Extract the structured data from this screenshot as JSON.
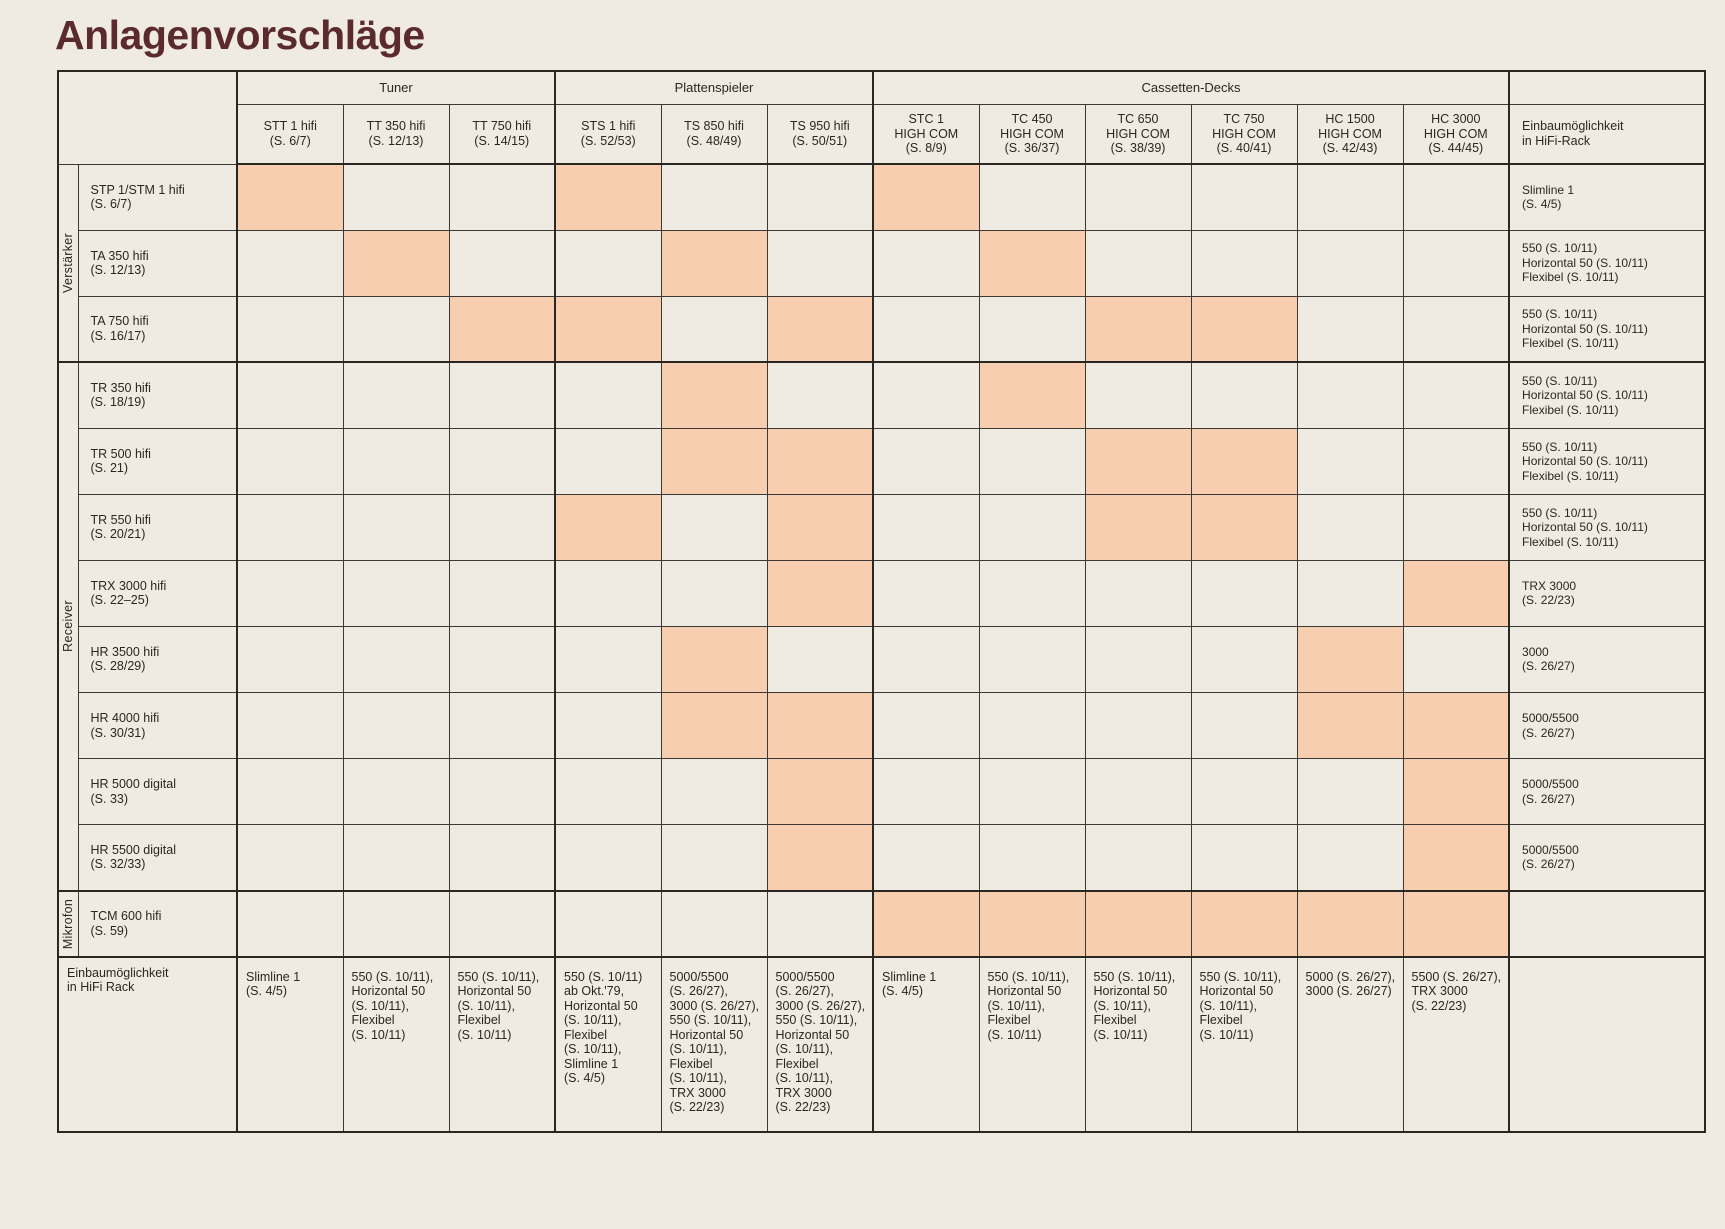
{
  "title": "Anlagenvorschläge",
  "accent_color": "#f7cfb0",
  "title_color": "#5a2a2c",
  "groups": [
    {
      "label": "Tuner",
      "span": 3
    },
    {
      "label": "Plattenspieler",
      "span": 3
    },
    {
      "label": "Cassetten-Decks",
      "span": 6
    }
  ],
  "columns": [
    {
      "lines": [
        "STT 1 hifi",
        "(S. 6/7)"
      ]
    },
    {
      "lines": [
        "TT 350 hifi",
        "(S. 12/13)"
      ]
    },
    {
      "lines": [
        "TT 750 hifi",
        "(S. 14/15)"
      ]
    },
    {
      "lines": [
        "STS 1 hifi",
        "(S. 52/53)"
      ]
    },
    {
      "lines": [
        "TS 850 hifi",
        "(S. 48/49)"
      ]
    },
    {
      "lines": [
        "TS 950 hifi",
        "(S. 50/51)"
      ]
    },
    {
      "lines": [
        "STC 1",
        "HIGH COM",
        "(S. 8/9)"
      ]
    },
    {
      "lines": [
        "TC 450",
        "HIGH COM",
        "(S. 36/37)"
      ]
    },
    {
      "lines": [
        "TC 650",
        "HIGH COM",
        "(S. 38/39)"
      ]
    },
    {
      "lines": [
        "TC 750",
        "HIGH COM",
        "(S. 40/41)"
      ]
    },
    {
      "lines": [
        "HC 1500",
        "HIGH COM",
        "(S. 42/43)"
      ]
    },
    {
      "lines": [
        "HC 3000",
        "HIGH COM",
        "(S. 44/45)"
      ]
    }
  ],
  "rack_header": [
    "Einbaumöglichkeit",
    "in HiFi-Rack"
  ],
  "sections": [
    {
      "label": "Verstärker",
      "rows": [
        {
          "lines": [
            "STP 1/STM 1 hifi",
            "(S. 6/7)"
          ],
          "marks": [
            1,
            0,
            0,
            1,
            0,
            0,
            1,
            0,
            0,
            0,
            0,
            0
          ],
          "rack": [
            "Slimline 1",
            "(S. 4/5)"
          ]
        },
        {
          "lines": [
            "TA 350 hifi",
            "(S. 12/13)"
          ],
          "marks": [
            0,
            1,
            0,
            0,
            1,
            0,
            0,
            1,
            0,
            0,
            0,
            0
          ],
          "rack": [
            "550 (S. 10/11)",
            "Horizontal 50 (S. 10/11)",
            "Flexibel (S. 10/11)"
          ]
        },
        {
          "lines": [
            "TA 750 hifi",
            "(S. 16/17)"
          ],
          "marks": [
            0,
            0,
            1,
            1,
            0,
            1,
            0,
            0,
            1,
            1,
            0,
            0
          ],
          "rack": [
            "550 (S. 10/11)",
            "Horizontal 50 (S. 10/11)",
            "Flexibel (S. 10/11)"
          ]
        }
      ]
    },
    {
      "label": "Receiver",
      "rows": [
        {
          "lines": [
            "TR 350 hifi",
            "(S. 18/19)"
          ],
          "marks": [
            0,
            0,
            0,
            0,
            1,
            0,
            0,
            1,
            0,
            0,
            0,
            0
          ],
          "rack": [
            "550 (S. 10/11)",
            "Horizontal 50 (S. 10/11)",
            "Flexibel (S. 10/11)"
          ]
        },
        {
          "lines": [
            "TR 500 hifi",
            "(S. 21)"
          ],
          "marks": [
            0,
            0,
            0,
            0,
            1,
            1,
            0,
            0,
            1,
            1,
            0,
            0
          ],
          "rack": [
            "550 (S. 10/11)",
            "Horizontal 50 (S. 10/11)",
            "Flexibel (S. 10/11)"
          ]
        },
        {
          "lines": [
            "TR 550 hifi",
            "(S. 20/21)"
          ],
          "marks": [
            0,
            0,
            0,
            1,
            0,
            1,
            0,
            0,
            1,
            1,
            0,
            0
          ],
          "rack": [
            "550 (S. 10/11)",
            "Horizontal 50 (S. 10/11)",
            "Flexibel (S. 10/11)"
          ]
        },
        {
          "lines": [
            "TRX 3000 hifi",
            "(S. 22–25)"
          ],
          "marks": [
            0,
            0,
            0,
            0,
            0,
            1,
            0,
            0,
            0,
            0,
            0,
            1
          ],
          "rack": [
            "TRX 3000",
            "(S. 22/23)"
          ]
        },
        {
          "lines": [
            "HR 3500 hifi",
            "(S. 28/29)"
          ],
          "marks": [
            0,
            0,
            0,
            0,
            1,
            0,
            0,
            0,
            0,
            0,
            1,
            0
          ],
          "rack": [
            "3000",
            "(S. 26/27)"
          ]
        },
        {
          "lines": [
            "HR 4000 hifi",
            "(S. 30/31)"
          ],
          "marks": [
            0,
            0,
            0,
            0,
            1,
            1,
            0,
            0,
            0,
            0,
            1,
            1
          ],
          "rack": [
            "5000/5500",
            "(S. 26/27)"
          ]
        },
        {
          "lines": [
            "HR 5000 digital",
            "(S. 33)"
          ],
          "marks": [
            0,
            0,
            0,
            0,
            0,
            1,
            0,
            0,
            0,
            0,
            0,
            1
          ],
          "rack": [
            "5000/5500",
            "(S. 26/27)"
          ]
        },
        {
          "lines": [
            "HR 5500 digital",
            "(S. 32/33)"
          ],
          "marks": [
            0,
            0,
            0,
            0,
            0,
            1,
            0,
            0,
            0,
            0,
            0,
            1
          ],
          "rack": [
            "5000/5500",
            "(S. 26/27)"
          ]
        }
      ]
    },
    {
      "label": "Mikrofon",
      "rows": [
        {
          "lines": [
            "TCM 600 hifi",
            "(S. 59)"
          ],
          "marks": [
            0,
            0,
            0,
            0,
            0,
            0,
            1,
            1,
            1,
            1,
            1,
            1
          ],
          "rack": []
        }
      ]
    }
  ],
  "footer_label": [
    "Einbaumöglichkeit",
    "in HiFi Rack"
  ],
  "footer": [
    [
      "Slimline 1",
      "(S. 4/5)"
    ],
    [
      "550 (S. 10/11),",
      "Horizontal 50",
      "(S. 10/11),",
      "Flexibel",
      "(S. 10/11)"
    ],
    [
      "550 (S. 10/11),",
      "Horizontal 50",
      "(S. 10/11),",
      "Flexibel",
      "(S. 10/11)"
    ],
    [
      "550 (S. 10/11)",
      "ab Okt.'79,",
      "Horizontal 50",
      "(S. 10/11),",
      "Flexibel",
      "(S. 10/11),",
      "Slimline 1",
      "(S. 4/5)"
    ],
    [
      "5000/5500",
      "(S. 26/27),",
      "3000 (S. 26/27),",
      "550 (S. 10/11),",
      "Horizontal 50",
      "(S. 10/11),",
      "Flexibel",
      "(S. 10/11),",
      "TRX 3000",
      "(S. 22/23)"
    ],
    [
      "5000/5500",
      "(S. 26/27),",
      "3000 (S. 26/27),",
      "550 (S. 10/11),",
      "Horizontal 50",
      "(S. 10/11),",
      "Flexibel",
      "(S. 10/11),",
      "TRX 3000",
      "(S. 22/23)"
    ],
    [
      "Slimline 1",
      "(S. 4/5)"
    ],
    [
      "550 (S. 10/11),",
      "Horizontal 50",
      "(S. 10/11),",
      "Flexibel",
      "(S. 10/11)"
    ],
    [
      "550 (S. 10/11),",
      "Horizontal 50",
      "(S. 10/11),",
      "Flexibel",
      "(S. 10/11)"
    ],
    [
      "550 (S. 10/11),",
      "Horizontal 50",
      "(S. 10/11),",
      "Flexibel",
      "(S. 10/11)"
    ],
    [
      "5000 (S. 26/27),",
      "3000 (S. 26/27)"
    ],
    [
      "5500 (S. 26/27),",
      "TRX 3000",
      "(S. 22/23)"
    ]
  ]
}
